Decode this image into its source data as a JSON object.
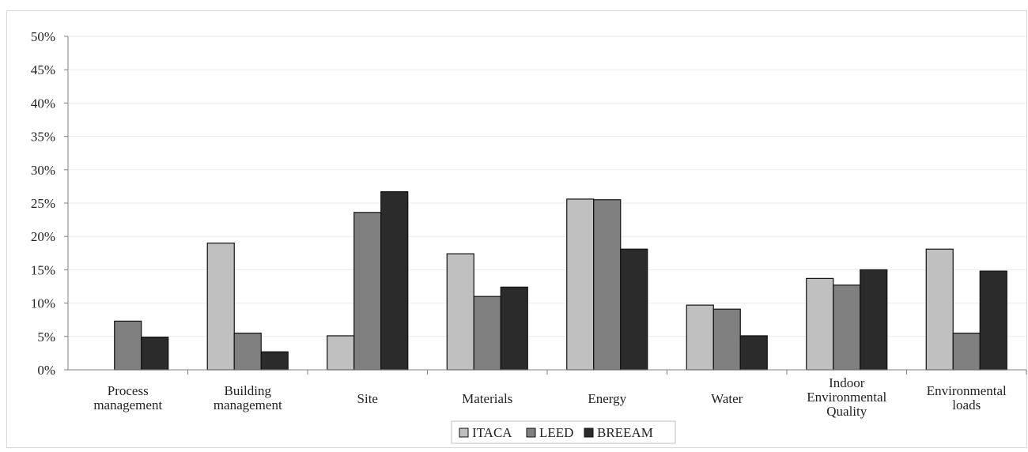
{
  "chart_data": {
    "type": "bar",
    "title": "",
    "xlabel": "",
    "ylabel": "",
    "ylim": [
      0,
      50
    ],
    "y_ticks": [
      "0%",
      "5%",
      "10%",
      "15%",
      "20%",
      "25%",
      "30%",
      "35%",
      "40%",
      "45%",
      "50%"
    ],
    "grid": true,
    "legend_position": "bottom-center",
    "categories": [
      [
        "Process",
        "management"
      ],
      [
        "Building",
        "management"
      ],
      [
        "Site"
      ],
      [
        "Materials"
      ],
      [
        "Energy"
      ],
      [
        "Water"
      ],
      [
        "Indoor",
        "Environmental",
        "Quality"
      ],
      [
        "Environmental",
        "loads"
      ]
    ],
    "series": [
      {
        "name": "ITACA",
        "color": "#c0c0c0",
        "values": [
          0,
          19.0,
          5.1,
          17.4,
          25.6,
          9.7,
          13.7,
          18.1
        ]
      },
      {
        "name": "LEED",
        "color": "#808080",
        "values": [
          7.3,
          5.5,
          23.6,
          11.0,
          25.5,
          9.1,
          12.7,
          5.5
        ]
      },
      {
        "name": "BREEAM",
        "color": "#2b2b2b",
        "values": [
          4.9,
          2.7,
          26.7,
          12.4,
          18.1,
          5.1,
          15.0,
          14.8
        ]
      }
    ]
  }
}
